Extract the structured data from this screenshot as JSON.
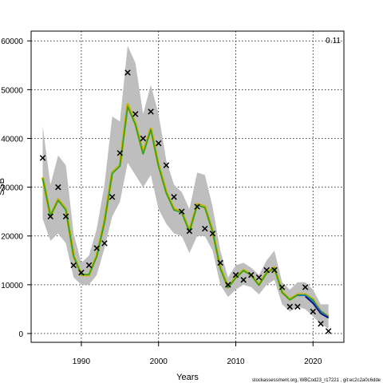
{
  "chart_data": {
    "type": "line",
    "title": "",
    "xlabel": "Years",
    "ylabel": "SSB",
    "xlim": [
      1983.5,
      2024
    ],
    "ylim": [
      -1800,
      62000
    ],
    "x_ticks": [
      1990,
      2000,
      2010,
      2020
    ],
    "x_tick_labels": [
      "1990",
      "2000",
      "2010",
      "2020"
    ],
    "y_ticks": [
      0,
      10000,
      20000,
      30000,
      40000,
      50000,
      60000
    ],
    "y_tick_labels": [
      "0",
      "10000",
      "20000",
      "30000",
      "40000",
      "50000",
      "60000"
    ],
    "grid": true,
    "annotation": "0.11",
    "footer": "stockassessment.org, WBCod23_r17221 , git:ec2c2a0c6dde",
    "colors": {
      "band": "#bebebe",
      "line_a": "#c8b400",
      "line_b": "#2ca02c",
      "line_c": "#1f77b4",
      "line_d": "#000080",
      "marker": "#000000",
      "grid": "#000000"
    },
    "band": {
      "x": [
        1985,
        1986,
        1987,
        1988,
        1989,
        1990,
        1991,
        1992,
        1993,
        1994,
        1995,
        1996,
        1997,
        1998,
        1999,
        2000,
        2001,
        2002,
        2003,
        2004,
        2005,
        2006,
        2007,
        2008,
        2009,
        2010,
        2011,
        2012,
        2013,
        2014,
        2015,
        2016,
        2017,
        2018,
        2019,
        2020,
        2021,
        2022
      ],
      "upper": [
        42500,
        30500,
        36500,
        34500,
        20500,
        14500,
        16000,
        21500,
        30500,
        44500,
        43500,
        59000,
        55500,
        45000,
        51000,
        45000,
        35500,
        30500,
        29000,
        25500,
        33000,
        32500,
        26000,
        17000,
        11500,
        14000,
        14500,
        13500,
        12000,
        15000,
        17000,
        10500,
        9000,
        10500,
        10500,
        9000,
        6000,
        6000
      ],
      "lower": [
        23500,
        19000,
        20500,
        18500,
        11500,
        10000,
        10000,
        12000,
        17500,
        24000,
        27000,
        35000,
        32500,
        30000,
        32500,
        25500,
        22500,
        20500,
        20000,
        16500,
        20000,
        20000,
        17000,
        10000,
        7500,
        9000,
        10000,
        9500,
        8000,
        10000,
        11000,
        6000,
        4500,
        5500,
        5000,
        3500,
        2000,
        1000
      ]
    },
    "series": [
      {
        "values": [
          32000,
          24000,
          27500,
          25500,
          16000,
          12000,
          12000,
          16000,
          23000,
          33000,
          34500,
          47000,
          43000,
          37000,
          42000,
          34500,
          29000,
          25500,
          25000,
          21000,
          26500,
          26000,
          21000,
          13500,
          9500,
          11500,
          13000,
          12000,
          10000,
          12500,
          13500,
          8500,
          7000,
          8000,
          8000,
          7000,
          4500,
          3500
        ]
      },
      {
        "values": [
          31800,
          24200,
          27300,
          25300,
          15800,
          12100,
          12100,
          15800,
          22800,
          32800,
          34300,
          46500,
          42800,
          36800,
          41800,
          34300,
          28800,
          25300,
          24800,
          20900,
          26300,
          25800,
          20900,
          13300,
          9400,
          11400,
          12900,
          11900,
          9900,
          12400,
          13400,
          8400,
          6900,
          7900,
          7900,
          6900,
          4400,
          3400
        ]
      },
      {
        "start_year": 2018,
        "values": [
          7800,
          7800,
          6600,
          4600,
          3400
        ]
      },
      {
        "start_year": 2019,
        "values": [
          7600,
          6200,
          4100,
          3200
        ]
      }
    ],
    "observations": {
      "x": [
        1985,
        1986,
        1987,
        1988,
        1989,
        1990,
        1991,
        1992,
        1993,
        1994,
        1995,
        1996,
        1997,
        1998,
        1999,
        2000,
        2001,
        2002,
        2003,
        2004,
        2005,
        2006,
        2007,
        2008,
        2009,
        2010,
        2011,
        2012,
        2013,
        2014,
        2015,
        2016,
        2017,
        2018,
        2019,
        2020,
        2021,
        2022
      ],
      "y": [
        36000,
        24000,
        30000,
        24000,
        14000,
        12500,
        14000,
        17500,
        18500,
        28000,
        37000,
        53500,
        45000,
        40000,
        45500,
        39000,
        34500,
        28000,
        25000,
        21000,
        26000,
        21500,
        20500,
        14500,
        10000,
        12000,
        11000,
        12000,
        11500,
        13000,
        13000,
        9500,
        5500,
        5500,
        9500,
        4500,
        2000,
        500
      ]
    }
  }
}
